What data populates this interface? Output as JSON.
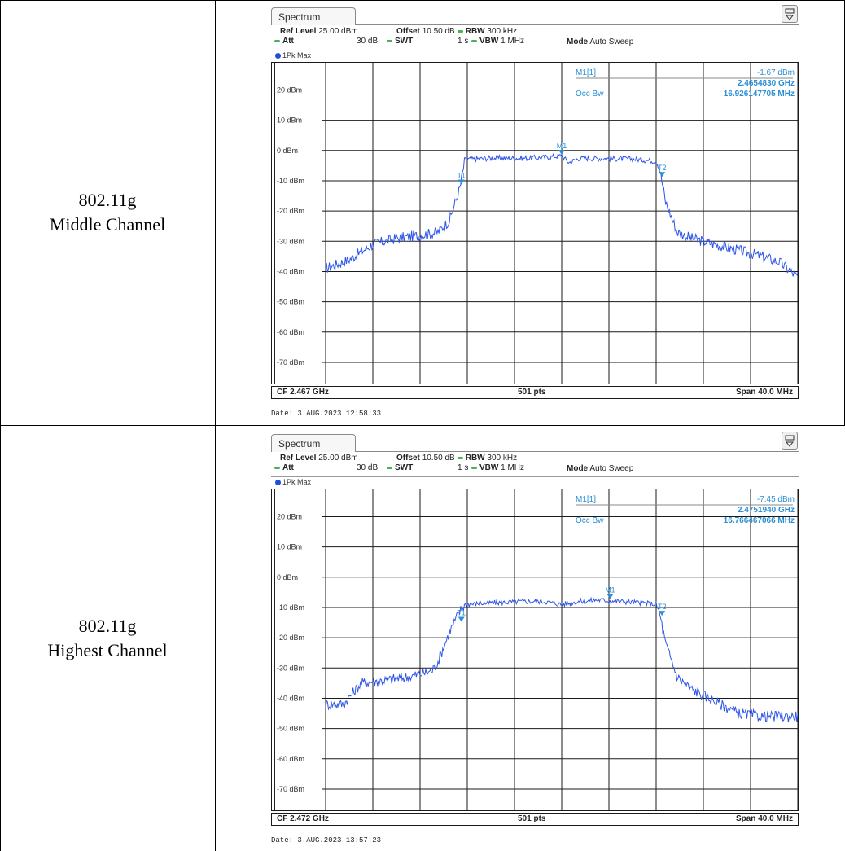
{
  "rows": [
    {
      "label_line1": "802.11g",
      "label_line2": "Middle Channel"
    },
    {
      "label_line1": "802.11g",
      "label_line2": "Highest Channel"
    }
  ],
  "chart_data": [
    {
      "type": "line",
      "tab": "Spectrum",
      "ref_level_label": "Ref Level",
      "ref_level": "25.00 dBm",
      "offset_label": "Offset",
      "offset": "10.50 dB",
      "rbw_label": "RBW",
      "rbw": "300 kHz",
      "att_label": "Att",
      "att": "30 dB",
      "swt_label": "SWT",
      "swt": "1 s",
      "vbw_label": "VBW",
      "vbw": "1 MHz",
      "mode_label": "Mode",
      "mode": "Auto Sweep",
      "trace_label": "1Pk Max",
      "ylabels": [
        "20 dBm",
        "10 dBm",
        "0 dBm",
        "-10 dBm",
        "-20 dBm",
        "-30 dBm",
        "-40 dBm",
        "-50 dBm",
        "-60 dBm",
        "-70 dBm"
      ],
      "y_ticks": [
        20,
        10,
        0,
        -10,
        -20,
        -30,
        -40,
        -50,
        -60,
        -70
      ],
      "ylim": [
        -77,
        29
      ],
      "xlim": [
        -20,
        20
      ],
      "grid": true,
      "marker_label": "M1[1]",
      "marker_level": "-1.67 dBm",
      "marker_freq": "2.4654830 GHz",
      "occ_label": "Occ Bw",
      "occ_bw": "16.926147705 MHz",
      "cf": "CF 2.467 GHz",
      "pts": "501 pts",
      "span": "Span 40.0 MHz",
      "date": "Date: 3.AUG.2023  12:58:33",
      "series": [
        {
          "x": [
            -20,
            -18,
            -16,
            -14,
            -12,
            -10.5,
            -9.5,
            -8.6,
            -8.2,
            -6,
            -3,
            -1.5,
            0,
            0.6,
            1.5,
            3,
            6,
            8.0,
            8.3,
            8.8,
            9.8,
            11,
            13,
            15,
            17,
            18.5,
            20
          ],
          "y": [
            -39,
            -36,
            -31,
            -29,
            -28,
            -27,
            -23,
            -12,
            -3,
            -2.5,
            -2.5,
            -2.3,
            -1.7,
            -4,
            -2.5,
            -2.6,
            -2.8,
            -3.5,
            -6,
            -17,
            -27,
            -29,
            -31,
            -33,
            -35,
            -37,
            -42
          ]
        }
      ],
      "marker_labels": [
        "T1",
        "M1",
        "T2"
      ],
      "markers": [
        {
          "x": -8.5,
          "y": -11.5
        },
        {
          "x": 0,
          "y": -1.7
        },
        {
          "x": 8.5,
          "y": -9
        }
      ]
    },
    {
      "type": "line",
      "tab": "Spectrum",
      "ref_level_label": "Ref Level",
      "ref_level": "25.00 dBm",
      "offset_label": "Offset",
      "offset": "10.50 dB",
      "rbw_label": "RBW",
      "rbw": "300 kHz",
      "att_label": "Att",
      "att": "30 dB",
      "swt_label": "SWT",
      "swt": "1 s",
      "vbw_label": "VBW",
      "vbw": "1 MHz",
      "mode_label": "Mode",
      "mode": "Auto Sweep",
      "trace_label": "1Pk Max",
      "ylabels": [
        "20 dBm",
        "10 dBm",
        "0 dBm",
        "-10 dBm",
        "-20 dBm",
        "-30 dBm",
        "-40 dBm",
        "-50 dBm",
        "-60 dBm",
        "-70 dBm"
      ],
      "y_ticks": [
        20,
        10,
        0,
        -10,
        -20,
        -30,
        -40,
        -50,
        -60,
        -70
      ],
      "ylim": [
        -77,
        29
      ],
      "xlim": [
        -20,
        20
      ],
      "grid": true,
      "marker_label": "M1[1]",
      "marker_level": "-7.45 dBm",
      "marker_freq": "2.4751940 GHz",
      "occ_label": "Occ Bw",
      "occ_bw": "16.766467066 MHz",
      "cf": "CF 2.472 GHz",
      "pts": "501 pts",
      "span": "Span 40.0 MHz",
      "date": "Date: 3.AUG.2023  13:57:23",
      "series": [
        {
          "x": [
            -20,
            -18.5,
            -17,
            -15,
            -13,
            -11,
            -10.5,
            -9.5,
            -8.6,
            -8.2,
            -6,
            -3,
            -1.5,
            0,
            1.5,
            3,
            5,
            7,
            8.0,
            8.3,
            8.8,
            9.8,
            11,
            13,
            15,
            17,
            20
          ],
          "y": [
            -42,
            -42,
            -35,
            -34,
            -33,
            -31,
            -28,
            -18,
            -11,
            -9,
            -8.5,
            -8,
            -8,
            -9,
            -8,
            -7.5,
            -8,
            -8.5,
            -9,
            -12,
            -22,
            -33,
            -37,
            -41,
            -45,
            -46,
            -46
          ]
        }
      ],
      "marker_labels": [
        "T1",
        "M1",
        "T2"
      ],
      "markers": [
        {
          "x": -8.5,
          "y": -15
        },
        {
          "x": 4.1,
          "y": -7.45
        },
        {
          "x": 8.5,
          "y": -13
        }
      ]
    }
  ]
}
